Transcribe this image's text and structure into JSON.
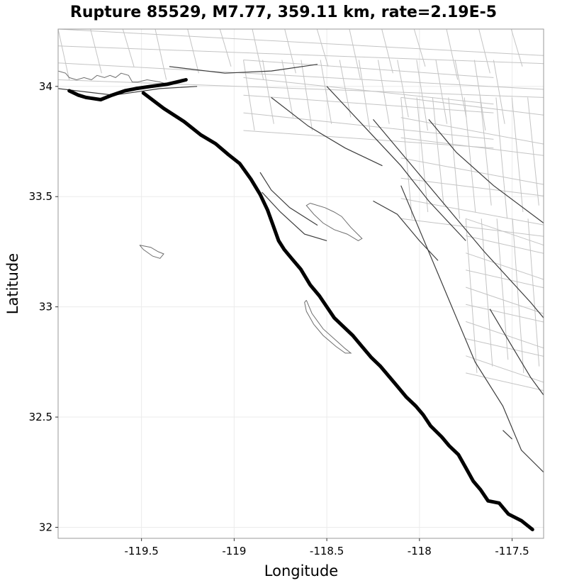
{
  "chart_data": {
    "type": "map",
    "title": "Rupture 85529, M7.77, 359.11 km, rate=2.19E-5",
    "xlabel": "Longitude",
    "ylabel": "Latitude",
    "xlim": [
      -119.95,
      -117.33
    ],
    "ylim": [
      31.95,
      34.26
    ],
    "x_ticks": [
      {
        "value": -119.5,
        "label": "-119.5"
      },
      {
        "value": -119.0,
        "label": "-119"
      },
      {
        "value": -118.5,
        "label": "-118.5"
      },
      {
        "value": -118.0,
        "label": "-118"
      },
      {
        "value": -117.5,
        "label": "-117.5"
      }
    ],
    "y_ticks": [
      {
        "value": 32.0,
        "label": "32"
      },
      {
        "value": 32.5,
        "label": "32.5"
      },
      {
        "value": 33.0,
        "label": "33"
      },
      {
        "value": 33.5,
        "label": "33.5"
      },
      {
        "value": 34.0,
        "label": "34"
      }
    ],
    "rupture_segments": [
      {
        "name": "offshore-southern-segment",
        "points": [
          [
            -119.49,
            33.97
          ],
          [
            -119.38,
            33.9
          ],
          [
            -119.27,
            33.84
          ],
          [
            -119.18,
            33.78
          ],
          [
            -119.1,
            33.74
          ],
          [
            -119.03,
            33.69
          ],
          [
            -118.97,
            33.65
          ],
          [
            -118.91,
            33.58
          ],
          [
            -118.86,
            33.51
          ],
          [
            -118.82,
            33.44
          ],
          [
            -118.79,
            33.37
          ],
          [
            -118.76,
            33.3
          ],
          [
            -118.73,
            33.26
          ],
          [
            -118.69,
            33.22
          ],
          [
            -118.64,
            33.17
          ],
          [
            -118.59,
            33.1
          ],
          [
            -118.54,
            33.05
          ],
          [
            -118.5,
            33.0
          ],
          [
            -118.46,
            32.95
          ],
          [
            -118.41,
            32.91
          ],
          [
            -118.36,
            32.87
          ],
          [
            -118.31,
            32.82
          ],
          [
            -118.26,
            32.77
          ],
          [
            -118.21,
            32.73
          ],
          [
            -118.17,
            32.69
          ],
          [
            -118.12,
            32.64
          ],
          [
            -118.07,
            32.59
          ],
          [
            -118.02,
            32.55
          ],
          [
            -117.98,
            32.51
          ],
          [
            -117.94,
            32.46
          ],
          [
            -117.88,
            32.41
          ],
          [
            -117.84,
            32.37
          ],
          [
            -117.79,
            32.33
          ],
          [
            -117.75,
            32.27
          ],
          [
            -117.71,
            32.21
          ],
          [
            -117.67,
            32.17
          ],
          [
            -117.63,
            32.12
          ],
          [
            -117.57,
            32.11
          ],
          [
            -117.52,
            32.06
          ],
          [
            -117.45,
            32.03
          ],
          [
            -117.39,
            31.99
          ]
        ]
      },
      {
        "name": "northern-coastal-segment",
        "points": [
          [
            -119.89,
            33.98
          ],
          [
            -119.84,
            33.96
          ],
          [
            -119.8,
            33.95
          ],
          [
            -119.72,
            33.94
          ],
          [
            -119.66,
            33.96
          ],
          [
            -119.59,
            33.98
          ],
          [
            -119.53,
            33.99
          ],
          [
            -119.45,
            34.0
          ],
          [
            -119.36,
            34.01
          ],
          [
            -119.26,
            34.03
          ]
        ]
      }
    ],
    "coastline_and_islands": [
      {
        "name": "mainland-coast",
        "points": [
          [
            -119.95,
            34.07
          ],
          [
            -119.91,
            34.06
          ],
          [
            -119.89,
            34.04
          ],
          [
            -119.85,
            34.03
          ],
          [
            -119.81,
            34.04
          ],
          [
            -119.77,
            34.03
          ],
          [
            -119.74,
            34.05
          ],
          [
            -119.7,
            34.04
          ],
          [
            -119.67,
            34.05
          ],
          [
            -119.64,
            34.04
          ],
          [
            -119.61,
            34.06
          ],
          [
            -119.57,
            34.05
          ],
          [
            -119.55,
            34.02
          ],
          [
            -119.52,
            34.02
          ],
          [
            -119.47,
            34.03
          ],
          [
            -119.4,
            34.02
          ],
          [
            -119.36,
            34.01
          ]
        ]
      },
      {
        "name": "channel-island",
        "points": [
          [
            -119.51,
            33.28
          ],
          [
            -119.45,
            33.27
          ],
          [
            -119.41,
            33.25
          ],
          [
            -119.38,
            33.24
          ],
          [
            -119.4,
            33.22
          ],
          [
            -119.44,
            33.23
          ],
          [
            -119.49,
            33.26
          ],
          [
            -119.51,
            33.28
          ]
        ]
      },
      {
        "name": "santa-catalina-island",
        "points": [
          [
            -118.59,
            33.47
          ],
          [
            -118.51,
            33.45
          ],
          [
            -118.46,
            33.43
          ],
          [
            -118.42,
            33.41
          ],
          [
            -118.37,
            33.36
          ],
          [
            -118.31,
            33.31
          ],
          [
            -118.33,
            33.3
          ],
          [
            -118.39,
            33.33
          ],
          [
            -118.46,
            33.35
          ],
          [
            -118.52,
            33.38
          ],
          [
            -118.57,
            33.42
          ],
          [
            -118.61,
            33.46
          ],
          [
            -118.59,
            33.47
          ]
        ]
      },
      {
        "name": "san-clemente-island",
        "points": [
          [
            -118.61,
            33.03
          ],
          [
            -118.58,
            32.97
          ],
          [
            -118.52,
            32.9
          ],
          [
            -118.44,
            32.84
          ],
          [
            -118.4,
            32.81
          ],
          [
            -118.37,
            32.79
          ],
          [
            -118.4,
            32.79
          ],
          [
            -118.45,
            32.82
          ],
          [
            -118.52,
            32.87
          ],
          [
            -118.57,
            32.92
          ],
          [
            -118.61,
            32.98
          ],
          [
            -118.62,
            33.02
          ],
          [
            -118.61,
            33.03
          ]
        ]
      }
    ],
    "fault_traces": [
      {
        "points": [
          [
            -119.95,
            33.99
          ],
          [
            -119.65,
            33.96
          ],
          [
            -119.4,
            33.99
          ],
          [
            -119.2,
            34.0
          ]
        ]
      },
      {
        "points": [
          [
            -119.35,
            34.09
          ],
          [
            -119.05,
            34.06
          ],
          [
            -118.8,
            34.07
          ],
          [
            -118.55,
            34.1
          ]
        ]
      },
      {
        "points": [
          [
            -118.8,
            33.95
          ],
          [
            -118.6,
            33.82
          ],
          [
            -118.4,
            33.72
          ],
          [
            -118.2,
            33.64
          ]
        ]
      },
      {
        "points": [
          [
            -118.5,
            34.0
          ],
          [
            -118.3,
            33.82
          ],
          [
            -118.1,
            33.64
          ],
          [
            -117.95,
            33.48
          ],
          [
            -117.75,
            33.3
          ]
        ]
      },
      {
        "points": [
          [
            -118.25,
            33.85
          ],
          [
            -118.05,
            33.65
          ],
          [
            -117.85,
            33.45
          ],
          [
            -117.65,
            33.25
          ],
          [
            -117.4,
            33.02
          ],
          [
            -117.33,
            32.95
          ]
        ]
      },
      {
        "points": [
          [
            -117.95,
            33.85
          ],
          [
            -117.8,
            33.7
          ],
          [
            -117.6,
            33.55
          ],
          [
            -117.33,
            33.38
          ]
        ]
      },
      {
        "points": [
          [
            -118.85,
            33.52
          ],
          [
            -118.75,
            33.43
          ],
          [
            -118.62,
            33.33
          ],
          [
            -118.5,
            33.3
          ]
        ]
      },
      {
        "points": [
          [
            -118.86,
            33.61
          ],
          [
            -118.8,
            33.53
          ],
          [
            -118.7,
            33.45
          ],
          [
            -118.55,
            33.37
          ]
        ]
      },
      {
        "points": [
          [
            -118.1,
            33.55
          ],
          [
            -118.0,
            33.35
          ],
          [
            -117.9,
            33.15
          ],
          [
            -117.8,
            32.95
          ],
          [
            -117.7,
            32.75
          ],
          [
            -117.55,
            32.55
          ],
          [
            -117.45,
            32.35
          ],
          [
            -117.33,
            32.25
          ]
        ]
      },
      {
        "points": [
          [
            -117.62,
            32.99
          ],
          [
            -117.5,
            32.82
          ],
          [
            -117.4,
            32.68
          ],
          [
            -117.33,
            32.6
          ]
        ]
      },
      {
        "points": [
          [
            -118.25,
            33.48
          ],
          [
            -118.12,
            33.42
          ],
          [
            -118.0,
            33.3
          ],
          [
            -117.9,
            33.21
          ]
        ]
      },
      {
        "points": [
          [
            -117.55,
            32.44
          ],
          [
            -117.5,
            32.4
          ]
        ]
      }
    ]
  }
}
